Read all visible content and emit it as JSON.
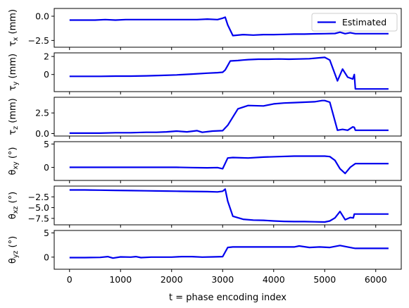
{
  "chart_data": {
    "type": "line",
    "xlabel": "t = phase encoding index",
    "xlim": [
      -300,
      6500
    ],
    "xticks": [
      0,
      1000,
      2000,
      3000,
      4000,
      5000,
      6000
    ],
    "xtick_labels": [
      "0",
      "1000",
      "2000",
      "3000",
      "4000",
      "5000",
      "6000"
    ],
    "legend": {
      "label": "Estimated",
      "placement": "top-right",
      "color": "#0000ee"
    },
    "series_color": "#0000ee",
    "panels": [
      {
        "ylabel_main": "τ",
        "ylabel_sub": "x",
        "ylabel_unit": " (mm)",
        "ylim": [
          -3.2,
          0.8
        ],
        "yticks": [
          0.0,
          -2.5
        ],
        "ytick_labels": [
          "0.0",
          "−2.5"
        ],
        "x": [
          0,
          100,
          300,
          500,
          700,
          900,
          1100,
          1300,
          1500,
          1700,
          1900,
          2100,
          2300,
          2500,
          2700,
          2900,
          3000,
          3050,
          3100,
          3200,
          3400,
          3600,
          3800,
          4000,
          4200,
          4400,
          4600,
          4800,
          5000,
          5200,
          5300,
          5400,
          5500,
          5600,
          5700,
          5900,
          6100,
          6250
        ],
        "values": [
          -0.4,
          -0.4,
          -0.4,
          -0.4,
          -0.35,
          -0.4,
          -0.35,
          -0.35,
          -0.35,
          -0.35,
          -0.35,
          -0.35,
          -0.35,
          -0.35,
          -0.3,
          -0.35,
          -0.2,
          -0.1,
          -0.9,
          -2.0,
          -1.9,
          -1.95,
          -1.9,
          -1.9,
          -1.88,
          -1.85,
          -1.85,
          -1.82,
          -1.8,
          -1.78,
          -1.65,
          -1.8,
          -1.7,
          -1.8,
          -1.8,
          -1.8,
          -1.8,
          -1.8
        ]
      },
      {
        "ylabel_main": "τ",
        "ylabel_sub": "y",
        "ylabel_unit": " (mm)",
        "ylim": [
          -1.9,
          2.4
        ],
        "yticks": [
          2,
          0
        ],
        "ytick_labels": [
          "2",
          "0"
        ],
        "x": [
          0,
          300,
          600,
          900,
          1200,
          1500,
          1800,
          2100,
          2400,
          2700,
          2900,
          3000,
          3050,
          3100,
          3150,
          3300,
          3400,
          3500,
          3700,
          3900,
          4100,
          4300,
          4500,
          4700,
          4900,
          5000,
          5100,
          5250,
          5350,
          5450,
          5550,
          5580,
          5600,
          5700,
          5900,
          6100,
          6250
        ],
        "values": [
          -0.2,
          -0.2,
          -0.2,
          -0.18,
          -0.18,
          -0.15,
          -0.1,
          -0.05,
          0.05,
          0.15,
          0.2,
          0.25,
          0.5,
          1.0,
          1.5,
          1.55,
          1.6,
          1.65,
          1.7,
          1.7,
          1.72,
          1.7,
          1.72,
          1.75,
          1.85,
          1.9,
          1.6,
          -0.7,
          0.6,
          -0.3,
          -0.5,
          0.0,
          -1.6,
          -1.6,
          -1.6,
          -1.6,
          -1.6
        ]
      },
      {
        "ylabel_main": "τ",
        "ylabel_sub": "z",
        "ylabel_unit": " (mm)",
        "ylim": [
          -0.3,
          4.4
        ],
        "yticks": [
          2.5,
          0.0
        ],
        "ytick_labels": [
          "2.5",
          "0.0"
        ],
        "x": [
          0,
          300,
          600,
          900,
          1200,
          1500,
          1700,
          1900,
          2100,
          2300,
          2500,
          2600,
          2800,
          3000,
          3100,
          3200,
          3300,
          3500,
          3800,
          4000,
          4200,
          4400,
          4600,
          4800,
          4950,
          5000,
          5100,
          5250,
          5350,
          5450,
          5550,
          5580,
          5600,
          5800,
          6000,
          6250
        ],
        "values": [
          0.05,
          0.05,
          0.05,
          0.1,
          0.1,
          0.15,
          0.15,
          0.2,
          0.3,
          0.2,
          0.35,
          0.15,
          0.3,
          0.35,
          1.0,
          2.0,
          3.0,
          3.4,
          3.35,
          3.6,
          3.7,
          3.75,
          3.8,
          3.85,
          4.0,
          4.0,
          3.8,
          0.4,
          0.5,
          0.4,
          0.8,
          0.75,
          0.4,
          0.4,
          0.4,
          0.4
        ]
      },
      {
        "ylabel_main": "θ",
        "ylabel_sub": "xy",
        "ylabel_unit": " (°)",
        "ylim": [
          -2.8,
          5.5
        ],
        "yticks": [
          5,
          0
        ],
        "ytick_labels": [
          "5",
          "0"
        ],
        "x": [
          0,
          300,
          600,
          900,
          1200,
          1500,
          1800,
          2100,
          2400,
          2700,
          2900,
          3000,
          3100,
          3200,
          3500,
          3800,
          4100,
          4400,
          4700,
          5000,
          5100,
          5200,
          5300,
          5400,
          5500,
          5600,
          5700,
          5900,
          6100,
          6250
        ],
        "values": [
          0.0,
          0.0,
          0.0,
          0.0,
          0.0,
          0.0,
          0.0,
          0.0,
          -0.05,
          -0.1,
          -0.05,
          -0.3,
          2.0,
          2.1,
          2.0,
          2.2,
          2.3,
          2.4,
          2.4,
          2.4,
          2.3,
          1.5,
          -0.3,
          -1.3,
          0.0,
          0.8,
          0.8,
          0.8,
          0.8,
          0.8
        ]
      },
      {
        "ylabel_main": "θ",
        "ylabel_sub": "xz",
        "ylabel_unit": " (°)",
        "ylim": [
          -9.0,
          0.0
        ],
        "yticks": [
          -2.5,
          -5.0,
          -7.5
        ],
        "ytick_labels": [
          "−2.5",
          "−5.0",
          "−7.5"
        ],
        "x": [
          0,
          300,
          600,
          900,
          1200,
          1500,
          1800,
          2100,
          2400,
          2700,
          2900,
          3000,
          3050,
          3100,
          3200,
          3400,
          3600,
          3800,
          4000,
          4200,
          4400,
          4600,
          4800,
          5000,
          5100,
          5200,
          5300,
          5400,
          5500,
          5560,
          5580,
          5600,
          5800,
          6000,
          6250
        ],
        "values": [
          -0.9,
          -0.9,
          -0.95,
          -1.0,
          -1.05,
          -1.1,
          -1.15,
          -1.2,
          -1.25,
          -1.3,
          -1.35,
          -1.2,
          -0.7,
          -3.5,
          -7.0,
          -7.7,
          -7.9,
          -7.95,
          -8.1,
          -8.2,
          -8.25,
          -8.25,
          -8.3,
          -8.35,
          -8.1,
          -7.4,
          -5.9,
          -7.8,
          -7.3,
          -7.4,
          -6.5,
          -6.5,
          -6.5,
          -6.5,
          -6.5
        ]
      },
      {
        "ylabel_main": "θ",
        "ylabel_sub": "yz",
        "ylabel_unit": " (°)",
        "ylim": [
          -2.5,
          5.5
        ],
        "yticks": [
          5,
          0
        ],
        "ytick_labels": [
          "5",
          "0"
        ],
        "x": [
          0,
          300,
          600,
          750,
          850,
          1000,
          1200,
          1300,
          1400,
          1600,
          1800,
          2000,
          2200,
          2400,
          2600,
          2800,
          3000,
          3100,
          3200,
          3500,
          3800,
          4100,
          4400,
          4500,
          4700,
          4900,
          5100,
          5300,
          5450,
          5550,
          5600,
          5800,
          6000,
          6250
        ],
        "values": [
          -0.1,
          -0.1,
          -0.05,
          0.1,
          -0.2,
          0.05,
          0.0,
          0.1,
          -0.1,
          0.0,
          0.0,
          0.0,
          0.1,
          0.1,
          0.0,
          0.05,
          0.1,
          2.0,
          2.1,
          2.1,
          2.1,
          2.1,
          2.1,
          2.3,
          2.0,
          2.1,
          2.0,
          2.4,
          2.1,
          1.9,
          1.8,
          1.8,
          1.8,
          1.8
        ]
      }
    ]
  }
}
